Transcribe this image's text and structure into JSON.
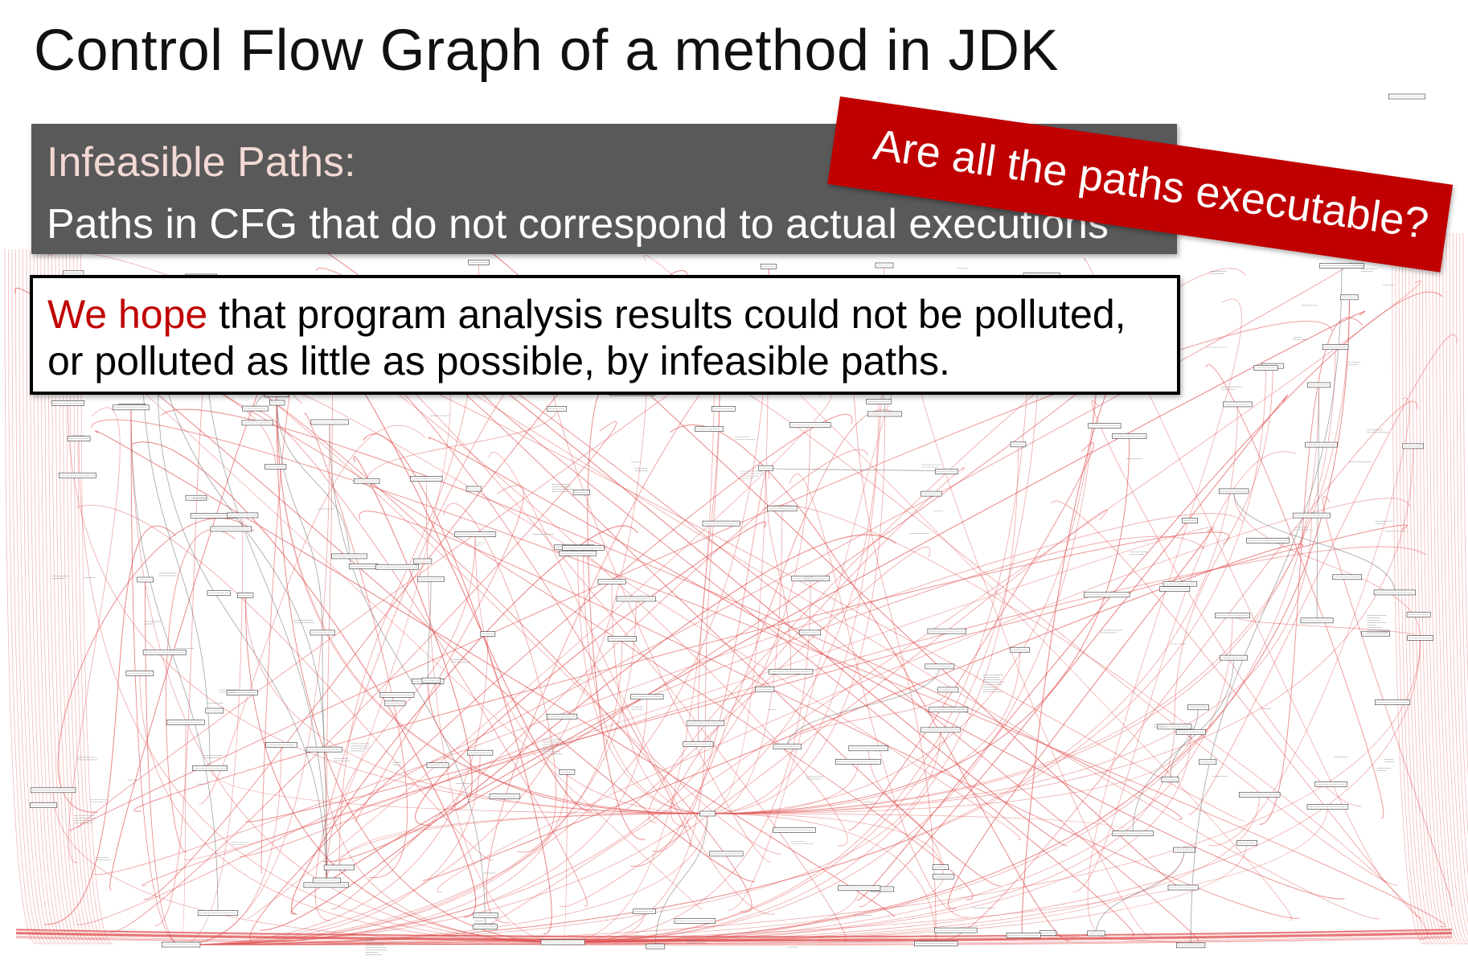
{
  "slide": {
    "title": "Control Flow Graph of a method in JDK"
  },
  "definition": {
    "term": "Infeasible Paths:",
    "text": "Paths in CFG that do not correspond to actual executions"
  },
  "callout": {
    "question": "Are all the paths executable?"
  },
  "hope": {
    "emphasis": "We hope",
    "line1_rest": " that program analysis results could not be polluted,",
    "line2": "or polluted as little as possible, by infeasible paths."
  },
  "graph": {
    "edge_color_primary": "#e05050",
    "edge_color_secondary": "#555555",
    "node_border_color": "#333333",
    "description": "dense control flow graph drawn as background"
  }
}
